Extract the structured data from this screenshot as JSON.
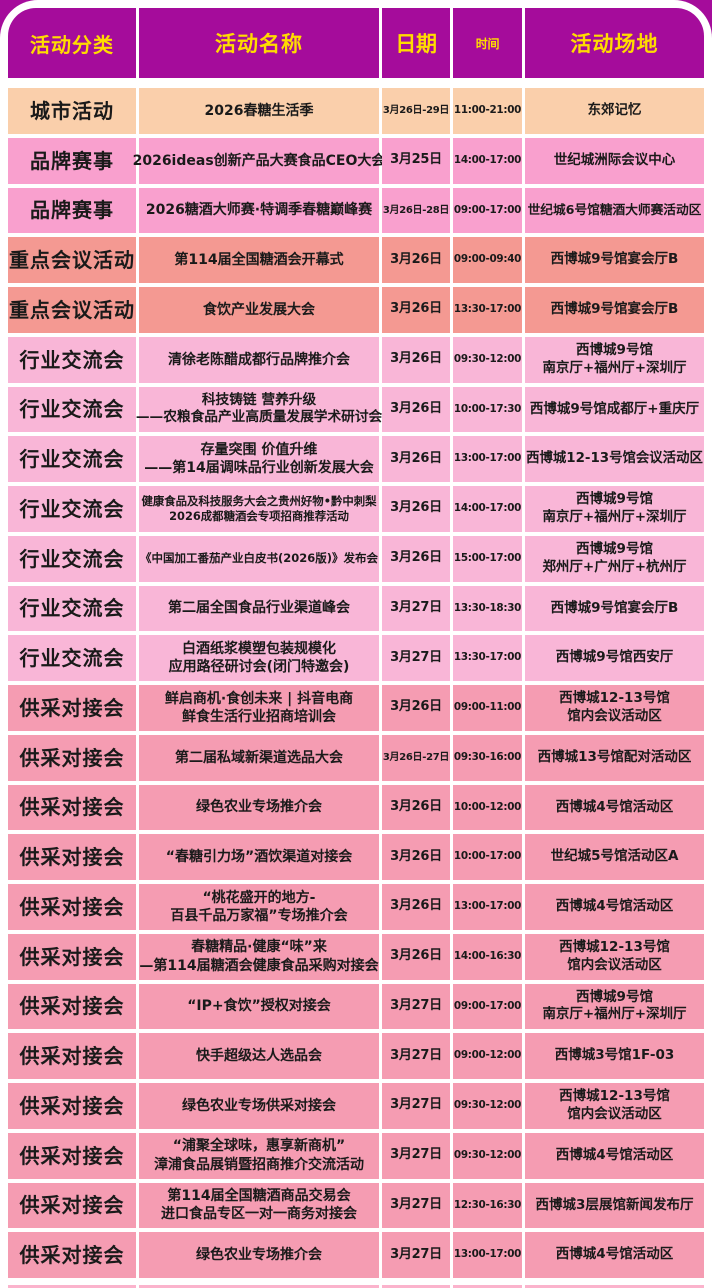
{
  "header": {
    "columns": [
      "活动分类",
      "活动名称",
      "日期",
      "时间",
      "活动场地"
    ]
  },
  "colors": {
    "header_bg": "#A50C9B",
    "header_text": "#FFDC00",
    "city": "#FACFAB",
    "brand": "#F9A0CE",
    "key_meeting": "#F49992",
    "industry": "#F9B6D7",
    "matchmaking": "#F59CB2",
    "partial_strip": "#FBB3CC",
    "text": "#1a1a1a"
  },
  "rows": [
    {
      "group": "city",
      "category": "城市活动",
      "name": [
        "2026春糖生活季"
      ],
      "date": "3月26日-29日",
      "time": "11:00-21:00",
      "venue": [
        "东郊记忆"
      ]
    },
    {
      "group": "brand",
      "category": "品牌赛事",
      "name": [
        "2026ideas创新产品大赛食品CEO大会"
      ],
      "date": "3月25日",
      "time": "14:00-17:00",
      "venue": [
        "世纪城洲际会议中心"
      ]
    },
    {
      "group": "brand",
      "category": "品牌赛事",
      "name": [
        "2026糖酒大师赛·特调季春糖巅峰赛"
      ],
      "date": "3月26日-28日",
      "time": "09:00-17:00",
      "venue": [
        "世纪城6号馆糖酒大师赛活动区"
      ]
    },
    {
      "group": "key_meeting",
      "category": "重点会议活动",
      "name": [
        "第114届全国糖酒会开幕式"
      ],
      "date": "3月26日",
      "time": "09:00-09:40",
      "venue": [
        "西博城9号馆宴会厅B"
      ]
    },
    {
      "group": "key_meeting",
      "category": "重点会议活动",
      "name": [
        "食饮产业发展大会"
      ],
      "date": "3月26日",
      "time": "13:30-17:00",
      "venue": [
        "西博城9号馆宴会厅B"
      ]
    },
    {
      "group": "industry",
      "category": "行业交流会",
      "name": [
        "清徐老陈醋成都行品牌推介会"
      ],
      "date": "3月26日",
      "time": "09:30-12:00",
      "venue": [
        "西博城9号馆",
        "南京厅+福州厅+深圳厅"
      ]
    },
    {
      "group": "industry",
      "category": "行业交流会",
      "name": [
        "科技铸链 营养升级",
        "——农粮食品产业高质量发展学术研讨会"
      ],
      "date": "3月26日",
      "time": "10:00-17:30",
      "venue": [
        "西博城9号馆成都厅+重庆厅"
      ]
    },
    {
      "group": "industry",
      "category": "行业交流会",
      "name": [
        "存量突围 价值升维",
        "——第14届调味品行业创新发展大会"
      ],
      "date": "3月26日",
      "time": "13:00-17:00",
      "venue": [
        "西博城12-13号馆会议活动区"
      ]
    },
    {
      "group": "industry",
      "category": "行业交流会",
      "name": [
        "健康食品及科技服务大会之贵州好物•黔中刺梨",
        "2026成都糖酒会专项招商推荐活动"
      ],
      "date": "3月26日",
      "time": "14:00-17:00",
      "venue": [
        "西博城9号馆",
        "南京厅+福州厅+深圳厅"
      ]
    },
    {
      "group": "industry",
      "category": "行业交流会",
      "name": [
        "《中国加工番茄产业白皮书(2026版)》发布会"
      ],
      "date": "3月26日",
      "time": "15:00-17:00",
      "venue": [
        "西博城9号馆",
        "郑州厅+广州厅+杭州厅"
      ]
    },
    {
      "group": "industry",
      "category": "行业交流会",
      "name": [
        "第二届全国食品行业渠道峰会"
      ],
      "date": "3月27日",
      "time": "13:30-18:30",
      "venue": [
        "西博城9号馆宴会厅B"
      ]
    },
    {
      "group": "industry",
      "category": "行业交流会",
      "name": [
        "白酒纸浆模塑包装规模化",
        "应用路径研讨会(闭门特邀会)"
      ],
      "date": "3月27日",
      "time": "13:30-17:00",
      "venue": [
        "西博城9号馆西安厅"
      ]
    },
    {
      "group": "matchmaking",
      "category": "供采对接会",
      "name": [
        "鲜启商机·食创未来 | 抖音电商",
        "鲜食生活行业招商培训会"
      ],
      "date": "3月26日",
      "time": "09:00-11:00",
      "venue": [
        "西博城12-13号馆",
        "馆内会议活动区"
      ]
    },
    {
      "group": "matchmaking",
      "category": "供采对接会",
      "name": [
        "第二届私域新渠道选品大会"
      ],
      "date": "3月26日-27日",
      "time": "09:30-16:00",
      "venue": [
        "西博城13号馆配对活动区"
      ]
    },
    {
      "group": "matchmaking",
      "category": "供采对接会",
      "name": [
        "绿色农业专场推介会"
      ],
      "date": "3月26日",
      "time": "10:00-12:00",
      "venue": [
        "西博城4号馆活动区"
      ]
    },
    {
      "group": "matchmaking",
      "category": "供采对接会",
      "name": [
        "“春糖引力场”酒饮渠道对接会"
      ],
      "date": "3月26日",
      "time": "10:00-17:00",
      "venue": [
        "世纪城5号馆活动区A"
      ]
    },
    {
      "group": "matchmaking",
      "category": "供采对接会",
      "name": [
        "“桃花盛开的地方-",
        "百县千品万家福”专场推介会"
      ],
      "date": "3月26日",
      "time": "13:00-17:00",
      "venue": [
        "西博城4号馆活动区"
      ]
    },
    {
      "group": "matchmaking",
      "category": "供采对接会",
      "name": [
        "春糖精品·健康“味”来",
        "—第114届糖酒会健康食品采购对接会"
      ],
      "date": "3月26日",
      "time": "14:00-16:30",
      "venue": [
        "西博城12-13号馆",
        "馆内会议活动区"
      ]
    },
    {
      "group": "matchmaking",
      "category": "供采对接会",
      "name": [
        "“IP+食饮”授权对接会"
      ],
      "date": "3月27日",
      "time": "09:00-17:00",
      "venue": [
        "西博城9号馆",
        "南京厅+福州厅+深圳厅"
      ]
    },
    {
      "group": "matchmaking",
      "category": "供采对接会",
      "name": [
        "快手超级达人选品会"
      ],
      "date": "3月27日",
      "time": "09:00-12:00",
      "venue": [
        "西博城3号馆1F-03"
      ]
    },
    {
      "group": "matchmaking",
      "category": "供采对接会",
      "name": [
        "绿色农业专场供采对接会"
      ],
      "date": "3月27日",
      "time": "09:30-12:00",
      "venue": [
        "西博城12-13号馆",
        "馆内会议活动区"
      ]
    },
    {
      "group": "matchmaking",
      "category": "供采对接会",
      "name": [
        "“浦聚全球味，惠享新商机”",
        "漳浦食品展销暨招商推介交流活动"
      ],
      "date": "3月27日",
      "time": "09:30-12:00",
      "venue": [
        "西博城4号馆活动区"
      ]
    },
    {
      "group": "matchmaking",
      "category": "供采对接会",
      "name": [
        "第114届全国糖酒商品交易会",
        "进口食品专区一对一商务对接会"
      ],
      "date": "3月27日",
      "time": "12:30-16:30",
      "venue": [
        "西博城3层展馆新闻发布厅"
      ]
    },
    {
      "group": "matchmaking",
      "category": "供采对接会",
      "name": [
        "绿色农业专场推介会"
      ],
      "date": "3月27日",
      "time": "13:00-17:00",
      "venue": [
        "西博城4号馆活动区"
      ]
    }
  ]
}
